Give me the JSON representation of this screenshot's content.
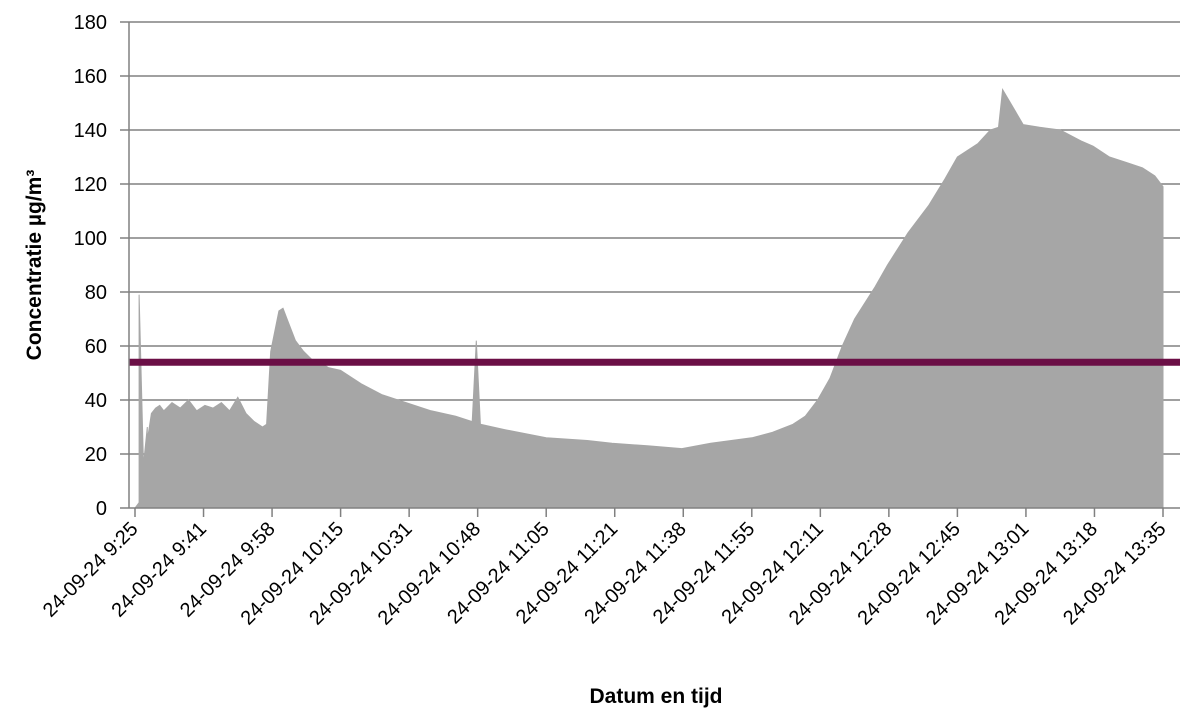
{
  "chart_data": {
    "type": "area",
    "title": "",
    "xlabel": "Datum en tijd",
    "ylabel": "Concentratie µg/m³",
    "ylim": [
      0,
      180
    ],
    "yticks": [
      0,
      20,
      40,
      60,
      80,
      100,
      120,
      140,
      160,
      180
    ],
    "xlim": [
      "24-09-24 9:25",
      "24-09-24 13:35"
    ],
    "xtick_labels": [
      "24-09-24 9:25",
      "24-09-24 9:41",
      "24-09-24 9:58",
      "24-09-24 10:15",
      "24-09-24 10:31",
      "24-09-24 10:48",
      "24-09-24 11:05",
      "24-09-24 11:21",
      "24-09-24 11:38",
      "24-09-24 11:55",
      "24-09-24 12:11",
      "24-09-24 12:28",
      "24-09-24 12:45",
      "24-09-24 13:01",
      "24-09-24 13:18",
      "24-09-24 13:35"
    ],
    "grid": true,
    "colors": {
      "area": "#a6a6a6",
      "reference": "#6b0f46",
      "grid": "#808080"
    },
    "reference_line": {
      "y": 54
    },
    "series": [
      {
        "x": [
          "24-09-24 9:25",
          "24-09-24 9:26",
          "24-09-24 9:26",
          "24-09-24 9:27",
          "24-09-24 9:27",
          "24-09-24 9:28",
          "24-09-24 9:28",
          "24-09-24 9:29",
          "24-09-24 9:30",
          "24-09-24 9:31",
          "24-09-24 9:32",
          "24-09-24 9:34",
          "24-09-24 9:36",
          "24-09-24 9:38",
          "24-09-24 9:40",
          "24-09-24 9:42",
          "24-09-24 9:44",
          "24-09-24 9:46",
          "24-09-24 9:48",
          "24-09-24 9:50",
          "24-09-24 9:52",
          "24-09-24 9:54",
          "24-09-24 9:56",
          "24-09-24 9:57",
          "24-09-24 9:58",
          "24-09-24 10:00",
          "24-09-24 10:01",
          "24-09-24 10:02",
          "24-09-24 10:04",
          "24-09-24 10:06",
          "24-09-24 10:08",
          "24-09-24 10:10",
          "24-09-24 10:12",
          "24-09-24 10:15",
          "24-09-24 10:20",
          "24-09-24 10:25",
          "24-09-24 10:31",
          "24-09-24 10:37",
          "24-09-24 10:43",
          "24-09-24 10:47",
          "24-09-24 10:48",
          "24-09-24 10:49",
          "24-09-24 10:55",
          "24-09-24 11:05",
          "24-09-24 11:15",
          "24-09-24 11:21",
          "24-09-24 11:30",
          "24-09-24 11:38",
          "24-09-24 11:45",
          "24-09-24 11:55",
          "24-09-24 12:00",
          "24-09-24 12:05",
          "24-09-24 12:08",
          "24-09-24 12:11",
          "24-09-24 12:14",
          "24-09-24 12:17",
          "24-09-24 12:20",
          "24-09-24 12:25",
          "24-09-24 12:28",
          "24-09-24 12:33",
          "24-09-24 12:38",
          "24-09-24 12:42",
          "24-09-24 12:45",
          "24-09-24 12:50",
          "24-09-24 12:53",
          "24-09-24 12:55",
          "24-09-24 12:56",
          "24-09-24 13:01",
          "24-09-24 13:05",
          "24-09-24 13:10",
          "24-09-24 13:15",
          "24-09-24 13:18",
          "24-09-24 13:22",
          "24-09-24 13:26",
          "24-09-24 13:30",
          "24-09-24 13:33",
          "24-09-24 13:35",
          "24-09-24 13:35"
        ],
        "values": [
          0,
          2,
          79,
          20,
          15,
          30,
          25,
          35,
          37,
          38,
          36,
          39,
          37,
          40,
          36,
          38,
          37,
          39,
          36,
          41,
          35,
          32,
          30,
          31,
          58,
          73,
          74,
          70,
          62,
          58,
          55,
          54,
          52,
          51,
          46,
          42,
          39,
          36,
          34,
          32,
          62,
          31,
          29,
          26,
          25,
          24,
          23,
          22,
          24,
          26,
          28,
          31,
          34,
          40,
          48,
          60,
          70,
          82,
          90,
          102,
          112,
          122,
          130,
          135,
          140,
          141,
          155,
          142,
          141,
          140,
          136,
          134,
          130,
          128,
          126,
          123,
          119,
          0
        ]
      }
    ]
  }
}
